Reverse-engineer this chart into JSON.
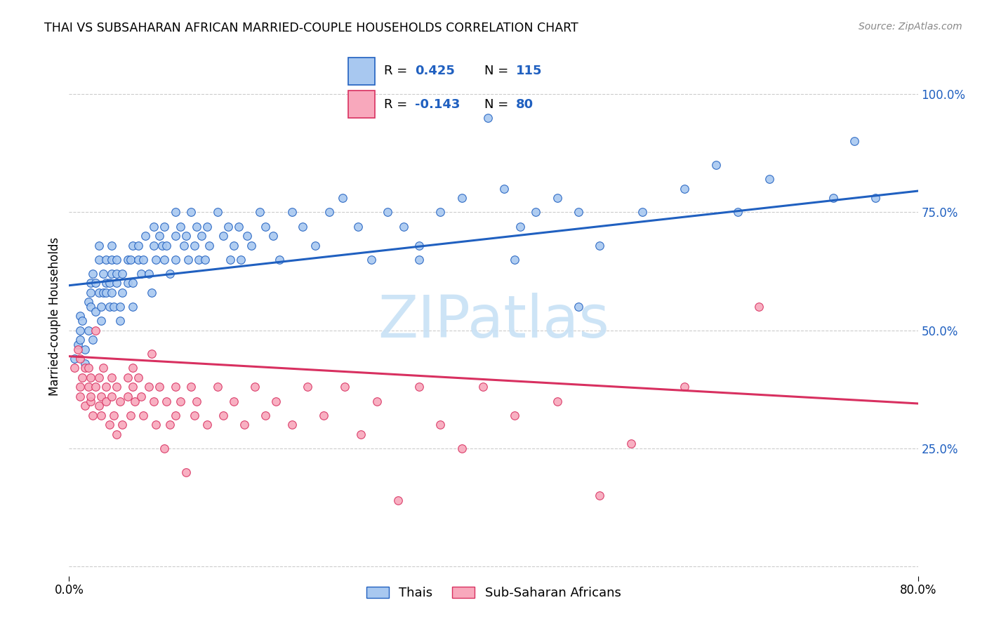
{
  "title": "THAI VS SUBSAHARAN AFRICAN MARRIED-COUPLE HOUSEHOLDS CORRELATION CHART",
  "source": "Source: ZipAtlas.com",
  "ylabel": "Married-couple Households",
  "xlim": [
    0.0,
    0.8
  ],
  "ylim": [
    -0.02,
    1.08
  ],
  "R_thai": 0.425,
  "N_thai": 115,
  "R_african": -0.143,
  "N_african": 80,
  "thai_color": "#A8C8F0",
  "thai_line_color": "#2060C0",
  "african_color": "#F8A8BC",
  "african_line_color": "#D83060",
  "watermark": "ZIPatlas",
  "watermark_color_r": 200,
  "watermark_color_g": 225,
  "watermark_color_b": 245,
  "legend_label_thai": "Thais",
  "legend_label_african": "Sub-Saharan Africans",
  "thai_line_y0": 0.595,
  "thai_line_y1": 0.795,
  "african_line_y0": 0.445,
  "african_line_y1": 0.345,
  "thai_scatter": [
    [
      0.005,
      0.44
    ],
    [
      0.008,
      0.47
    ],
    [
      0.01,
      0.5
    ],
    [
      0.01,
      0.53
    ],
    [
      0.01,
      0.48
    ],
    [
      0.012,
      0.52
    ],
    [
      0.015,
      0.46
    ],
    [
      0.015,
      0.43
    ],
    [
      0.018,
      0.5
    ],
    [
      0.018,
      0.56
    ],
    [
      0.02,
      0.55
    ],
    [
      0.02,
      0.6
    ],
    [
      0.02,
      0.58
    ],
    [
      0.022,
      0.62
    ],
    [
      0.022,
      0.48
    ],
    [
      0.025,
      0.54
    ],
    [
      0.025,
      0.6
    ],
    [
      0.028,
      0.65
    ],
    [
      0.028,
      0.68
    ],
    [
      0.028,
      0.58
    ],
    [
      0.03,
      0.55
    ],
    [
      0.03,
      0.52
    ],
    [
      0.032,
      0.58
    ],
    [
      0.032,
      0.62
    ],
    [
      0.035,
      0.65
    ],
    [
      0.035,
      0.6
    ],
    [
      0.035,
      0.58
    ],
    [
      0.038,
      0.55
    ],
    [
      0.038,
      0.6
    ],
    [
      0.04,
      0.62
    ],
    [
      0.04,
      0.65
    ],
    [
      0.04,
      0.68
    ],
    [
      0.04,
      0.58
    ],
    [
      0.042,
      0.55
    ],
    [
      0.045,
      0.6
    ],
    [
      0.045,
      0.62
    ],
    [
      0.045,
      0.65
    ],
    [
      0.048,
      0.55
    ],
    [
      0.048,
      0.52
    ],
    [
      0.05,
      0.58
    ],
    [
      0.05,
      0.62
    ],
    [
      0.055,
      0.65
    ],
    [
      0.055,
      0.6
    ],
    [
      0.058,
      0.65
    ],
    [
      0.06,
      0.68
    ],
    [
      0.06,
      0.6
    ],
    [
      0.06,
      0.55
    ],
    [
      0.065,
      0.65
    ],
    [
      0.065,
      0.68
    ],
    [
      0.068,
      0.62
    ],
    [
      0.07,
      0.65
    ],
    [
      0.072,
      0.7
    ],
    [
      0.075,
      0.62
    ],
    [
      0.078,
      0.58
    ],
    [
      0.08,
      0.68
    ],
    [
      0.08,
      0.72
    ],
    [
      0.082,
      0.65
    ],
    [
      0.085,
      0.7
    ],
    [
      0.088,
      0.68
    ],
    [
      0.09,
      0.65
    ],
    [
      0.09,
      0.72
    ],
    [
      0.092,
      0.68
    ],
    [
      0.095,
      0.62
    ],
    [
      0.1,
      0.7
    ],
    [
      0.1,
      0.75
    ],
    [
      0.1,
      0.65
    ],
    [
      0.105,
      0.72
    ],
    [
      0.108,
      0.68
    ],
    [
      0.11,
      0.7
    ],
    [
      0.112,
      0.65
    ],
    [
      0.115,
      0.75
    ],
    [
      0.118,
      0.68
    ],
    [
      0.12,
      0.72
    ],
    [
      0.122,
      0.65
    ],
    [
      0.125,
      0.7
    ],
    [
      0.128,
      0.65
    ],
    [
      0.13,
      0.72
    ],
    [
      0.132,
      0.68
    ],
    [
      0.14,
      0.75
    ],
    [
      0.145,
      0.7
    ],
    [
      0.15,
      0.72
    ],
    [
      0.152,
      0.65
    ],
    [
      0.155,
      0.68
    ],
    [
      0.16,
      0.72
    ],
    [
      0.162,
      0.65
    ],
    [
      0.168,
      0.7
    ],
    [
      0.172,
      0.68
    ],
    [
      0.18,
      0.75
    ],
    [
      0.185,
      0.72
    ],
    [
      0.192,
      0.7
    ],
    [
      0.198,
      0.65
    ],
    [
      0.21,
      0.75
    ],
    [
      0.22,
      0.72
    ],
    [
      0.232,
      0.68
    ],
    [
      0.245,
      0.75
    ],
    [
      0.258,
      0.78
    ],
    [
      0.272,
      0.72
    ],
    [
      0.285,
      0.65
    ],
    [
      0.3,
      0.75
    ],
    [
      0.315,
      0.72
    ],
    [
      0.33,
      0.68
    ],
    [
      0.35,
      0.75
    ],
    [
      0.37,
      0.78
    ],
    [
      0.33,
      0.65
    ],
    [
      0.395,
      0.95
    ],
    [
      0.41,
      0.8
    ],
    [
      0.425,
      0.72
    ],
    [
      0.44,
      0.75
    ],
    [
      0.42,
      0.65
    ],
    [
      0.46,
      0.78
    ],
    [
      0.48,
      0.75
    ],
    [
      0.5,
      0.68
    ],
    [
      0.48,
      0.55
    ],
    [
      0.54,
      0.75
    ],
    [
      0.58,
      0.8
    ],
    [
      0.61,
      0.85
    ],
    [
      0.63,
      0.75
    ],
    [
      0.66,
      0.82
    ],
    [
      0.72,
      0.78
    ],
    [
      0.74,
      0.9
    ],
    [
      0.76,
      0.78
    ]
  ],
  "african_scatter": [
    [
      0.005,
      0.42
    ],
    [
      0.008,
      0.46
    ],
    [
      0.01,
      0.38
    ],
    [
      0.01,
      0.44
    ],
    [
      0.01,
      0.36
    ],
    [
      0.012,
      0.4
    ],
    [
      0.015,
      0.42
    ],
    [
      0.015,
      0.34
    ],
    [
      0.018,
      0.42
    ],
    [
      0.018,
      0.38
    ],
    [
      0.02,
      0.35
    ],
    [
      0.02,
      0.4
    ],
    [
      0.02,
      0.36
    ],
    [
      0.022,
      0.32
    ],
    [
      0.025,
      0.38
    ],
    [
      0.025,
      0.5
    ],
    [
      0.028,
      0.4
    ],
    [
      0.028,
      0.34
    ],
    [
      0.03,
      0.36
    ],
    [
      0.03,
      0.32
    ],
    [
      0.032,
      0.42
    ],
    [
      0.035,
      0.38
    ],
    [
      0.035,
      0.35
    ],
    [
      0.038,
      0.3
    ],
    [
      0.04,
      0.4
    ],
    [
      0.04,
      0.36
    ],
    [
      0.042,
      0.32
    ],
    [
      0.045,
      0.28
    ],
    [
      0.045,
      0.38
    ],
    [
      0.048,
      0.35
    ],
    [
      0.05,
      0.3
    ],
    [
      0.055,
      0.4
    ],
    [
      0.055,
      0.36
    ],
    [
      0.058,
      0.32
    ],
    [
      0.06,
      0.42
    ],
    [
      0.06,
      0.38
    ],
    [
      0.062,
      0.35
    ],
    [
      0.065,
      0.4
    ],
    [
      0.068,
      0.36
    ],
    [
      0.07,
      0.32
    ],
    [
      0.075,
      0.38
    ],
    [
      0.078,
      0.45
    ],
    [
      0.08,
      0.35
    ],
    [
      0.082,
      0.3
    ],
    [
      0.085,
      0.38
    ],
    [
      0.09,
      0.25
    ],
    [
      0.092,
      0.35
    ],
    [
      0.095,
      0.3
    ],
    [
      0.1,
      0.38
    ],
    [
      0.1,
      0.32
    ],
    [
      0.105,
      0.35
    ],
    [
      0.11,
      0.2
    ],
    [
      0.115,
      0.38
    ],
    [
      0.118,
      0.32
    ],
    [
      0.12,
      0.35
    ],
    [
      0.13,
      0.3
    ],
    [
      0.14,
      0.38
    ],
    [
      0.145,
      0.32
    ],
    [
      0.155,
      0.35
    ],
    [
      0.165,
      0.3
    ],
    [
      0.175,
      0.38
    ],
    [
      0.185,
      0.32
    ],
    [
      0.195,
      0.35
    ],
    [
      0.21,
      0.3
    ],
    [
      0.225,
      0.38
    ],
    [
      0.24,
      0.32
    ],
    [
      0.26,
      0.38
    ],
    [
      0.275,
      0.28
    ],
    [
      0.29,
      0.35
    ],
    [
      0.31,
      0.14
    ],
    [
      0.33,
      0.38
    ],
    [
      0.35,
      0.3
    ],
    [
      0.37,
      0.25
    ],
    [
      0.39,
      0.38
    ],
    [
      0.42,
      0.32
    ],
    [
      0.46,
      0.35
    ],
    [
      0.5,
      0.15
    ],
    [
      0.53,
      0.26
    ],
    [
      0.58,
      0.38
    ],
    [
      0.65,
      0.55
    ]
  ]
}
